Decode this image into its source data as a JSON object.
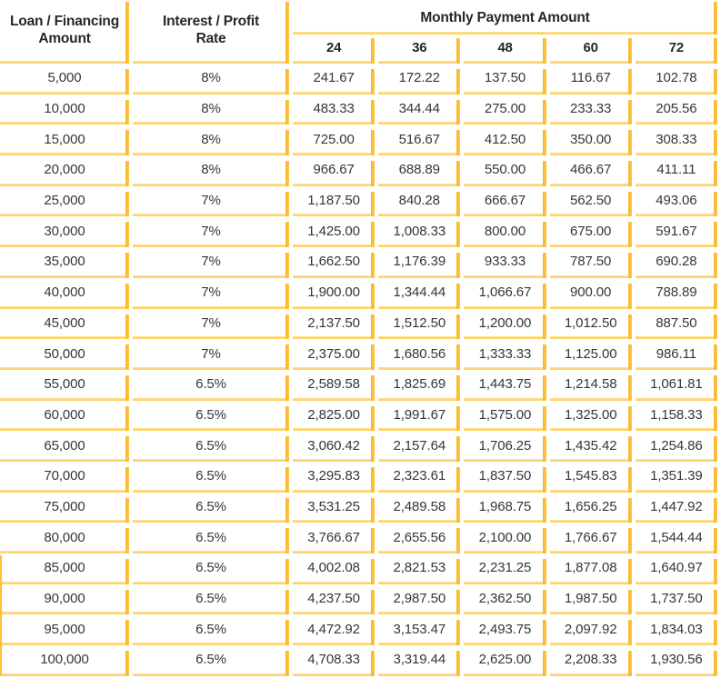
{
  "table": {
    "header": {
      "loan_line1": "Loan / Financing",
      "loan_line2": "Amount",
      "rate_line1": "Interest / Profit",
      "rate_line2": "Rate",
      "group_label": "Monthly Payment Amount",
      "terms": [
        "24",
        "36",
        "48",
        "60",
        "72"
      ]
    },
    "rows": [
      {
        "amount": "5,000",
        "rate": "8%",
        "payments": [
          "241.67",
          "172.22",
          "137.50",
          "116.67",
          "102.78"
        ]
      },
      {
        "amount": "10,000",
        "rate": "8%",
        "payments": [
          "483.33",
          "344.44",
          "275.00",
          "233.33",
          "205.56"
        ]
      },
      {
        "amount": "15,000",
        "rate": "8%",
        "payments": [
          "725.00",
          "516.67",
          "412.50",
          "350.00",
          "308.33"
        ]
      },
      {
        "amount": "20,000",
        "rate": "8%",
        "payments": [
          "966.67",
          "688.89",
          "550.00",
          "466.67",
          "411.11"
        ]
      },
      {
        "amount": "25,000",
        "rate": "7%",
        "payments": [
          "1,187.50",
          "840.28",
          "666.67",
          "562.50",
          "493.06"
        ]
      },
      {
        "amount": "30,000",
        "rate": "7%",
        "payments": [
          "1,425.00",
          "1,008.33",
          "800.00",
          "675.00",
          "591.67"
        ]
      },
      {
        "amount": "35,000",
        "rate": "7%",
        "payments": [
          "1,662.50",
          "1,176.39",
          "933.33",
          "787.50",
          "690.28"
        ]
      },
      {
        "amount": "40,000",
        "rate": "7%",
        "payments": [
          "1,900.00",
          "1,344.44",
          "1,066.67",
          "900.00",
          "788.89"
        ]
      },
      {
        "amount": "45,000",
        "rate": "7%",
        "payments": [
          "2,137.50",
          "1,512.50",
          "1,200.00",
          "1,012.50",
          "887.50"
        ]
      },
      {
        "amount": "50,000",
        "rate": "7%",
        "payments": [
          "2,375.00",
          "1,680.56",
          "1,333.33",
          "1,125.00",
          "986.11"
        ]
      },
      {
        "amount": "55,000",
        "rate": "6.5%",
        "payments": [
          "2,589.58",
          "1,825.69",
          "1,443.75",
          "1,214.58",
          "1,061.81"
        ]
      },
      {
        "amount": "60,000",
        "rate": "6.5%",
        "payments": [
          "2,825.00",
          "1,991.67",
          "1,575.00",
          "1,325.00",
          "1,158.33"
        ]
      },
      {
        "amount": "65,000",
        "rate": "6.5%",
        "payments": [
          "3,060.42",
          "2,157.64",
          "1,706.25",
          "1,435.42",
          "1,254.86"
        ]
      },
      {
        "amount": "70,000",
        "rate": "6.5%",
        "payments": [
          "3,295.83",
          "2,323.61",
          "1,837.50",
          "1,545.83",
          "1,351.39"
        ]
      },
      {
        "amount": "75,000",
        "rate": "6.5%",
        "payments": [
          "3,531.25",
          "2,489.58",
          "1,968.75",
          "1,656.25",
          "1,447.92"
        ]
      },
      {
        "amount": "80,000",
        "rate": "6.5%",
        "payments": [
          "3,766.67",
          "2,655.56",
          "2,100.00",
          "1,766.67",
          "1,544.44"
        ]
      },
      {
        "amount": "85,000",
        "rate": "6.5%",
        "payments": [
          "4,002.08",
          "2,821.53",
          "2,231.25",
          "1,877.08",
          "1,640.97"
        ]
      },
      {
        "amount": "90,000",
        "rate": "6.5%",
        "payments": [
          "4,237.50",
          "2,987.50",
          "2,362.50",
          "1,987.50",
          "1,737.50"
        ]
      },
      {
        "amount": "95,000",
        "rate": "6.5%",
        "payments": [
          "4,472.92",
          "3,153.47",
          "2,493.75",
          "2,097.92",
          "1,834.03"
        ]
      },
      {
        "amount": "100,000",
        "rate": "6.5%",
        "payments": [
          "4,708.33",
          "3,319.44",
          "2,625.00",
          "2,208.33",
          "1,930.56"
        ]
      }
    ],
    "colors": {
      "border_line": "#FDCF5F",
      "border_bar": "#FCC039",
      "header_text": "#26262E",
      "data_text": "#35353D"
    }
  }
}
